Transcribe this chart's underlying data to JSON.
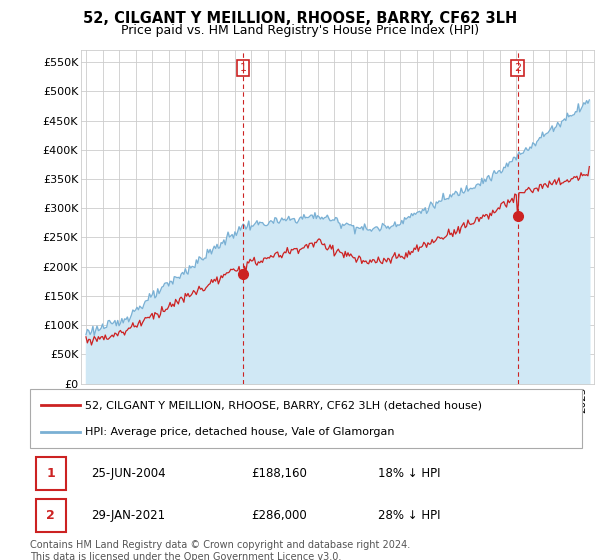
{
  "title": "52, CILGANT Y MEILLION, RHOOSE, BARRY, CF62 3LH",
  "subtitle": "Price paid vs. HM Land Registry's House Price Index (HPI)",
  "ylim": [
    0,
    570000
  ],
  "yticks": [
    0,
    50000,
    100000,
    150000,
    200000,
    250000,
    300000,
    350000,
    400000,
    450000,
    500000,
    550000
  ],
  "ytick_labels": [
    "£0",
    "£50K",
    "£100K",
    "£150K",
    "£200K",
    "£250K",
    "£300K",
    "£350K",
    "£400K",
    "£450K",
    "£500K",
    "£550K"
  ],
  "hpi_color": "#7ab0d4",
  "hpi_fill_color": "#d0e8f5",
  "price_color": "#cc2222",
  "transaction1_year": 2004.486,
  "transaction1_price": 188160,
  "transaction2_year": 2021.078,
  "transaction2_price": 286000,
  "legend_line1": "52, CILGANT Y MEILLION, RHOOSE, BARRY, CF62 3LH (detached house)",
  "legend_line2": "HPI: Average price, detached house, Vale of Glamorgan",
  "row1_num": "1",
  "row1_date": "25-JUN-2004",
  "row1_price": "£188,160",
  "row1_hpi": "18% ↓ HPI",
  "row2_num": "2",
  "row2_date": "29-JAN-2021",
  "row2_price": "£286,000",
  "row2_hpi": "28% ↓ HPI",
  "footnote": "Contains HM Land Registry data © Crown copyright and database right 2024.\nThis data is licensed under the Open Government Licence v3.0.",
  "grid_color": "#cccccc",
  "plot_bg_color": "#ffffff",
  "xlim_left": 1994.7,
  "xlim_right": 2025.7
}
